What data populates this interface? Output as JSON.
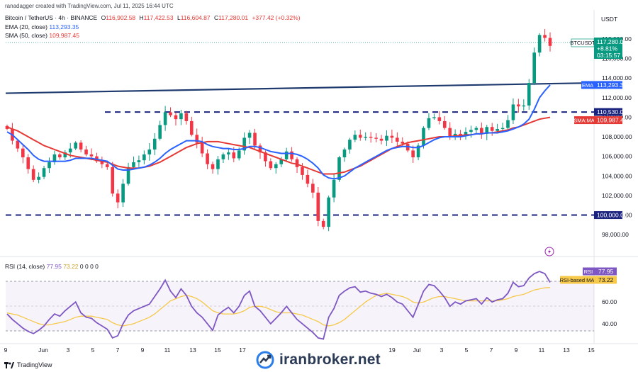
{
  "header": {
    "created_by": "ranadagger created with TradingView.com, Jul 11, 2025 16:44 UTC",
    "symbol_line": "Bitcoin / TetherUS · 4h · BINANCE",
    "ohlc": {
      "o_label": "O",
      "o_value": "116,902.58",
      "h_label": "H",
      "h_value": "117,422.53",
      "l_label": "L",
      "l_value": "116,604.87",
      "c_label": "C",
      "c_value": "117,280.01",
      "change": "+377.42 (+0.32%)"
    },
    "ema_label": "EMA (20, close)",
    "ema_value": "113,293.35",
    "sma_label": "SMA (50, close)",
    "sma_value": "109,987.45",
    "currency": "USDT"
  },
  "price_labels": {
    "symbol": "BTCUSDT",
    "price": "117,280.01",
    "pct": "+8.81%",
    "timer": "03:15:57",
    "ema_tag": "EMA",
    "ema_price": "113,293.35",
    "level_110": "110,530.00",
    "sma_tag": "SMA:MA",
    "sma_price": "109,987.45",
    "level_100": "100,000.00"
  },
  "rsi_panel": {
    "label": "RSI (14, close)",
    "rsi_value": "77.95",
    "ma_value": "73.22",
    "zeros": "0  0  0  0",
    "rsi_tag": "RSI",
    "rsi_ma_tag": "RSI-based MA",
    "ticks": [
      "60.00",
      "40.00"
    ]
  },
  "brand": "iranbroker.net",
  "tv_logo": "TradingView",
  "colors": {
    "candle_up": "#089981",
    "candle_down": "#f23645",
    "ema": "#2962ff",
    "sma": "#e53935",
    "rsi": "#7e57c2",
    "rsi_ma": "#f7c948",
    "trendline": "#1e3a6e",
    "level": "#1a237e"
  },
  "chart_data": {
    "type": "candlestick",
    "title": "Bitcoin / TetherUS · 4h · BINANCE",
    "x_ticks": [
      "9",
      "Jun",
      "3",
      "5",
      "7",
      "9",
      "11",
      "13",
      "15",
      "17",
      "19",
      "Jul",
      "3",
      "5",
      "7",
      "9",
      "11",
      "13",
      "15"
    ],
    "y_ticks": [
      "118,000.00",
      "116,000.00",
      "114,000.00",
      "112,000.00",
      "110,000.00",
      "108,000.00",
      "106,000.00",
      "104,000.00",
      "102,000.00",
      "100,000.00",
      "98,000.00"
    ],
    "ylim": [
      97000,
      119800
    ],
    "close_path": [
      108800,
      107600,
      106800,
      105900,
      104700,
      103600,
      103900,
      104800,
      105400,
      106200,
      105900,
      106400,
      106800,
      107400,
      106700,
      106200,
      106000,
      105500,
      105200,
      104900,
      102200,
      101300,
      103200,
      104900,
      105400,
      105600,
      106200,
      106700,
      107800,
      109200,
      110500,
      110200,
      109800,
      110400,
      109600,
      108200,
      107400,
      106300,
      105200,
      104700,
      105700,
      106200,
      106400,
      105800,
      106600,
      107900,
      108400,
      107100,
      106400,
      105500,
      104800,
      105200,
      105700,
      106500,
      105700,
      104900,
      104100,
      103200,
      102300,
      99400,
      98800,
      101800,
      103600,
      105900,
      106700,
      107700,
      108200,
      107900,
      108000,
      107900,
      107800,
      107600,
      108100,
      107900,
      107500,
      107300,
      106600,
      105900,
      107100,
      108900,
      109900,
      110000,
      109600,
      108900,
      108000,
      108300,
      108100,
      108500,
      108700,
      108900,
      108300,
      109000,
      108600,
      108800,
      108900,
      109700,
      111300,
      111100,
      111200,
      113500,
      116600,
      118400,
      118100,
      117280
    ],
    "ema_path": [
      108500,
      108200,
      107700,
      107200,
      106700,
      106100,
      105700,
      105500,
      105500,
      105500,
      105500,
      105500,
      105600,
      105800,
      105800,
      105800,
      105800,
      105700,
      105600,
      105500,
      105100,
      104700,
      104600,
      104600,
      104700,
      104800,
      104900,
      105100,
      105400,
      105800,
      106300,
      106700,
      107000,
      107300,
      107600,
      107600,
      107600,
      107500,
      107200,
      107000,
      106900,
      106800,
      106800,
      106700,
      106700,
      106800,
      107000,
      107000,
      106900,
      106700,
      106500,
      106400,
      106300,
      106300,
      106300,
      106200,
      106000,
      105700,
      105300,
      104800,
      104100,
      103800,
      103700,
      103800,
      104000,
      104400,
      104800,
      105100,
      105400,
      105700,
      106000,
      106300,
      106600,
      106800,
      106900,
      107000,
      107000,
      106900,
      106900,
      107100,
      107400,
      107700,
      107900,
      108000,
      108000,
      108000,
      108000,
      108100,
      108200,
      108300,
      108300,
      108400,
      108400,
      108400,
      108500,
      108600,
      108800,
      109000,
      109300,
      109800,
      110800,
      112000,
      112700,
      113293
    ],
    "sma_path": [
      109000,
      108800,
      108600,
      108300,
      108000,
      107700,
      107400,
      107100,
      106900,
      106700,
      106500,
      106300,
      106100,
      106000,
      105900,
      105800,
      105700,
      105600,
      105500,
      105400,
      105200,
      105000,
      104900,
      104800,
      104800,
      104800,
      104900,
      105000,
      105200,
      105400,
      105700,
      106000,
      106300,
      106600,
      106900,
      107100,
      107300,
      107400,
      107500,
      107500,
      107500,
      107400,
      107300,
      107200,
      107100,
      107000,
      106900,
      106700,
      106500,
      106300,
      106100,
      105900,
      105700,
      105500,
      105300,
      105200,
      105000,
      104800,
      104600,
      104400,
      104200,
      104200,
      104200,
      104300,
      104400,
      104600,
      104800,
      105000,
      105300,
      105600,
      105900,
      106200,
      106500,
      106800,
      107000,
      107200,
      107400,
      107500,
      107600,
      107700,
      107800,
      107900,
      108000,
      108000,
      108000,
      108100,
      108100,
      108200,
      108200,
      108300,
      108300,
      108400,
      108400,
      108500,
      108600,
      108700,
      108900,
      109000,
      109200,
      109400,
      109600,
      109800,
      109900,
      109987
    ],
    "levels": [
      110530,
      100000
    ],
    "trendline": [
      {
        "bar": 0,
        "price": 112450
      },
      {
        "bar": 103,
        "price": 113500
      }
    ],
    "rsi": {
      "ylim": [
        25,
        90
      ],
      "upper": 70,
      "lower": 30,
      "mid": 50,
      "rsi_path": [
        49,
        44,
        40,
        36,
        33,
        31,
        34,
        38,
        44,
        49,
        47,
        52,
        56,
        60,
        50,
        46,
        45,
        41,
        38,
        35,
        27,
        29,
        40,
        48,
        52,
        54,
        56,
        58,
        65,
        72,
        80,
        70,
        64,
        72,
        66,
        56,
        50,
        46,
        40,
        34,
        48,
        52,
        55,
        50,
        56,
        66,
        70,
        56,
        52,
        46,
        40,
        45,
        50,
        56,
        50,
        44,
        40,
        36,
        32,
        27,
        26,
        46,
        54,
        66,
        70,
        73,
        74,
        69,
        70,
        68,
        67,
        65,
        67,
        64,
        60,
        58,
        52,
        46,
        58,
        70,
        76,
        75,
        70,
        64,
        56,
        60,
        58,
        61,
        62,
        63,
        58,
        64,
        60,
        62,
        63,
        68,
        78,
        74,
        75,
        82,
        86,
        88,
        86,
        77.95
      ],
      "ma_path": [
        50,
        49,
        48,
        46,
        44,
        42,
        40,
        39,
        39,
        40,
        41,
        42,
        44,
        46,
        47,
        47,
        47,
        46,
        45,
        44,
        41,
        39,
        38,
        39,
        40,
        42,
        44,
        46,
        49,
        53,
        57,
        61,
        63,
        65,
        66,
        65,
        63,
        60,
        56,
        52,
        50,
        49,
        49,
        49,
        50,
        52,
        55,
        56,
        56,
        55,
        53,
        51,
        50,
        50,
        50,
        49,
        48,
        46,
        44,
        42,
        39,
        38,
        39,
        41,
        44,
        48,
        52,
        56,
        60,
        63,
        66,
        67,
        68,
        67,
        66,
        65,
        63,
        60,
        59,
        60,
        62,
        64,
        65,
        65,
        64,
        63,
        62,
        61,
        61,
        61,
        61,
        61,
        61,
        61,
        62,
        63,
        65,
        66,
        67,
        69,
        71,
        72,
        73,
        73.22
      ]
    }
  }
}
